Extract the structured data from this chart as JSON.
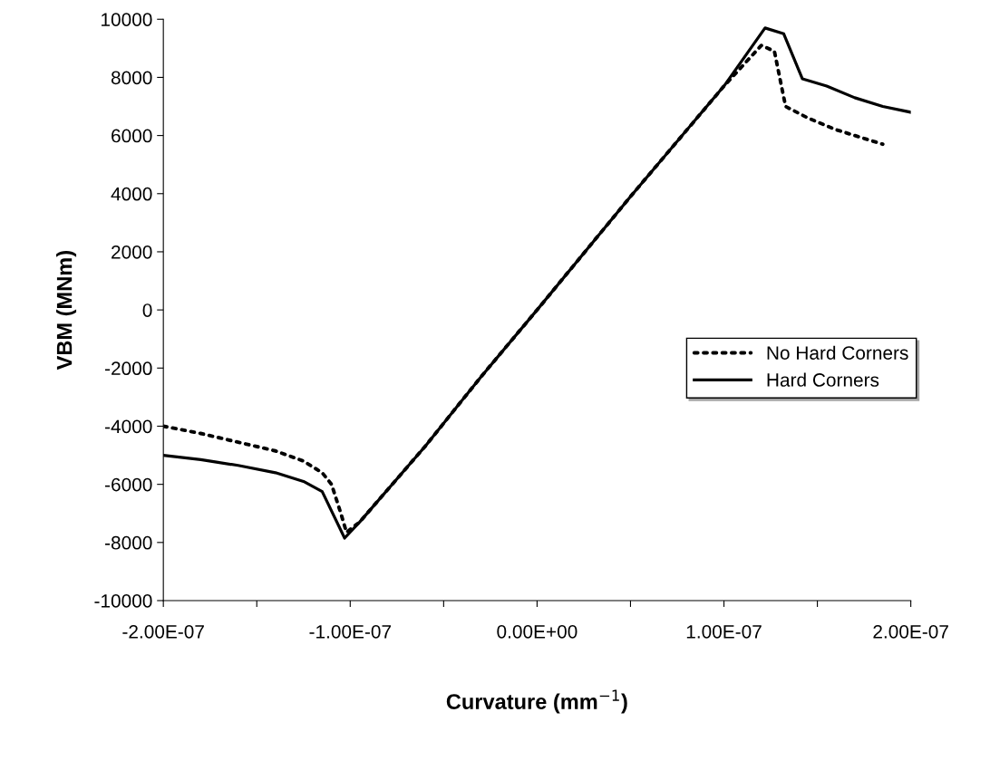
{
  "chart_data": {
    "type": "line",
    "xlabel": "Curvature (mm$^{−1}$)",
    "ylabel": "VBM (MNm)",
    "xlim": [
      -2e-07,
      2e-07
    ],
    "ylim": [
      -10000,
      10000
    ],
    "xticks": [
      {
        "value": -2e-07,
        "label": "-2.00E-07"
      },
      {
        "value": -1.5e-07,
        "label": null
      },
      {
        "value": -1e-07,
        "label": "-1.00E-07"
      },
      {
        "value": -5e-08,
        "label": null
      },
      {
        "value": 0,
        "label": "0.00E+00"
      },
      {
        "value": 5e-08,
        "label": null
      },
      {
        "value": 1e-07,
        "label": "1.00E-07"
      },
      {
        "value": 1.5e-07,
        "label": null
      },
      {
        "value": 2e-07,
        "label": "2.00E-07"
      }
    ],
    "yticks": [
      -10000,
      -8000,
      -6000,
      -4000,
      -2000,
      0,
      2000,
      4000,
      6000,
      8000,
      10000
    ],
    "grid": false,
    "legend": "right",
    "marker": "none",
    "series": [
      {
        "name": "No Hard Corners",
        "color": "#000000",
        "line_style": "dotted",
        "x": [
          -2e-07,
          -1.8e-07,
          -1.6e-07,
          -1.4e-07,
          -1.25e-07,
          -1.15e-07,
          -1.1e-07,
          -1.05e-07,
          -1.02e-07,
          -9.5e-08,
          -6e-08,
          -3e-08,
          0,
          5e-08,
          1e-07,
          1.2e-07,
          1.27e-07,
          1.33e-07,
          1.45e-07,
          1.6e-07,
          1.75e-07,
          1.85e-07
        ],
        "values": [
          -4000,
          -4250,
          -4550,
          -4850,
          -5200,
          -5600,
          -6000,
          -7000,
          -7650,
          -7300,
          -4700,
          -2300,
          0,
          3900,
          7700,
          9100,
          8900,
          7000,
          6600,
          6200,
          5900,
          5700
        ]
      },
      {
        "name": "Hard Corners",
        "color": "#000000",
        "line_style": "solid",
        "x": [
          -2e-07,
          -1.8e-07,
          -1.6e-07,
          -1.4e-07,
          -1.25e-07,
          -1.15e-07,
          -1.03e-07,
          -9.5e-08,
          -6e-08,
          -3e-08,
          0,
          5e-08,
          1e-07,
          1.22e-07,
          1.32e-07,
          1.42e-07,
          1.55e-07,
          1.7e-07,
          1.85e-07,
          2e-07
        ],
        "values": [
          -5000,
          -5150,
          -5350,
          -5600,
          -5900,
          -6250,
          -7850,
          -7300,
          -4700,
          -2300,
          0,
          3900,
          7700,
          9700,
          9500,
          7950,
          7700,
          7300,
          7000,
          6800
        ]
      }
    ]
  }
}
